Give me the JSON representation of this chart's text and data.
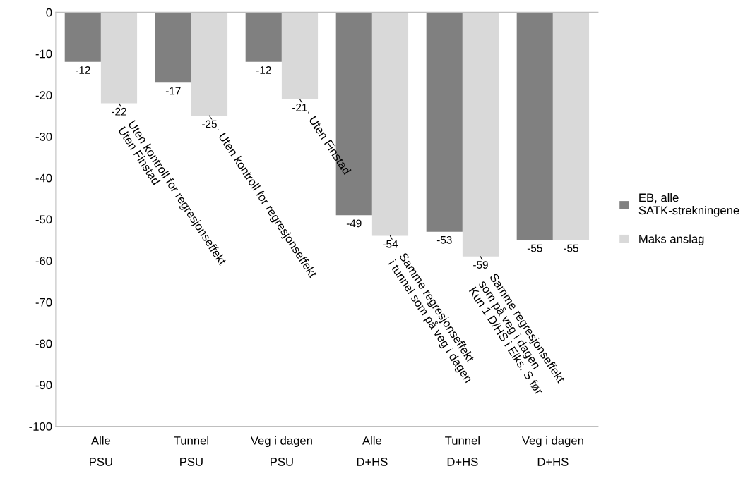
{
  "chart_data": {
    "type": "bar",
    "categories": [
      "Alle\nPSU",
      "Tunnel\nPSU",
      "Veg i dagen\nPSU",
      "Alle\nD+HS",
      "Tunnel\nD+HS",
      "Veg i dagen\nD+HS"
    ],
    "series": [
      {
        "name": "EB, alle\nSATK-strekningene",
        "color": "#808080",
        "values": [
          -12,
          -17,
          -12,
          -49,
          -53,
          -55
        ]
      },
      {
        "name": "Maks anslag",
        "color": "#d9d9d9",
        "values": [
          -22,
          -25,
          -21,
          -54,
          -59,
          -55
        ]
      }
    ],
    "ylim": [
      -100,
      0
    ],
    "yticks": [
      0,
      -10,
      -20,
      -30,
      -40,
      -50,
      -60,
      -70,
      -80,
      -90,
      -100
    ],
    "data_labels": true,
    "legend": "right",
    "grid": false,
    "annotations": [
      {
        "text": "Uten kontroll for regresjonseffekt\nUten Finstad",
        "x": "Alle\nPSU",
        "y": -22
      },
      {
        "text": "Uten kontroll for regresjonseffekt",
        "x": "Tunnel\nPSU",
        "y": -25
      },
      {
        "text": "Uten Finstad",
        "x": "Veg i dagen\nPSU",
        "y": -21
      },
      {
        "text": "Samme regresjonseffekt\ni tunnel som på veg i dagen",
        "x": "Alle\nD+HS",
        "y": -54
      },
      {
        "text": "Samme regresjonseffekt\nsom på veg i dagen\nKun 1 D/HS i Eiks. S før",
        "x": "Tunnel\nD+HS",
        "y": -59
      }
    ]
  }
}
